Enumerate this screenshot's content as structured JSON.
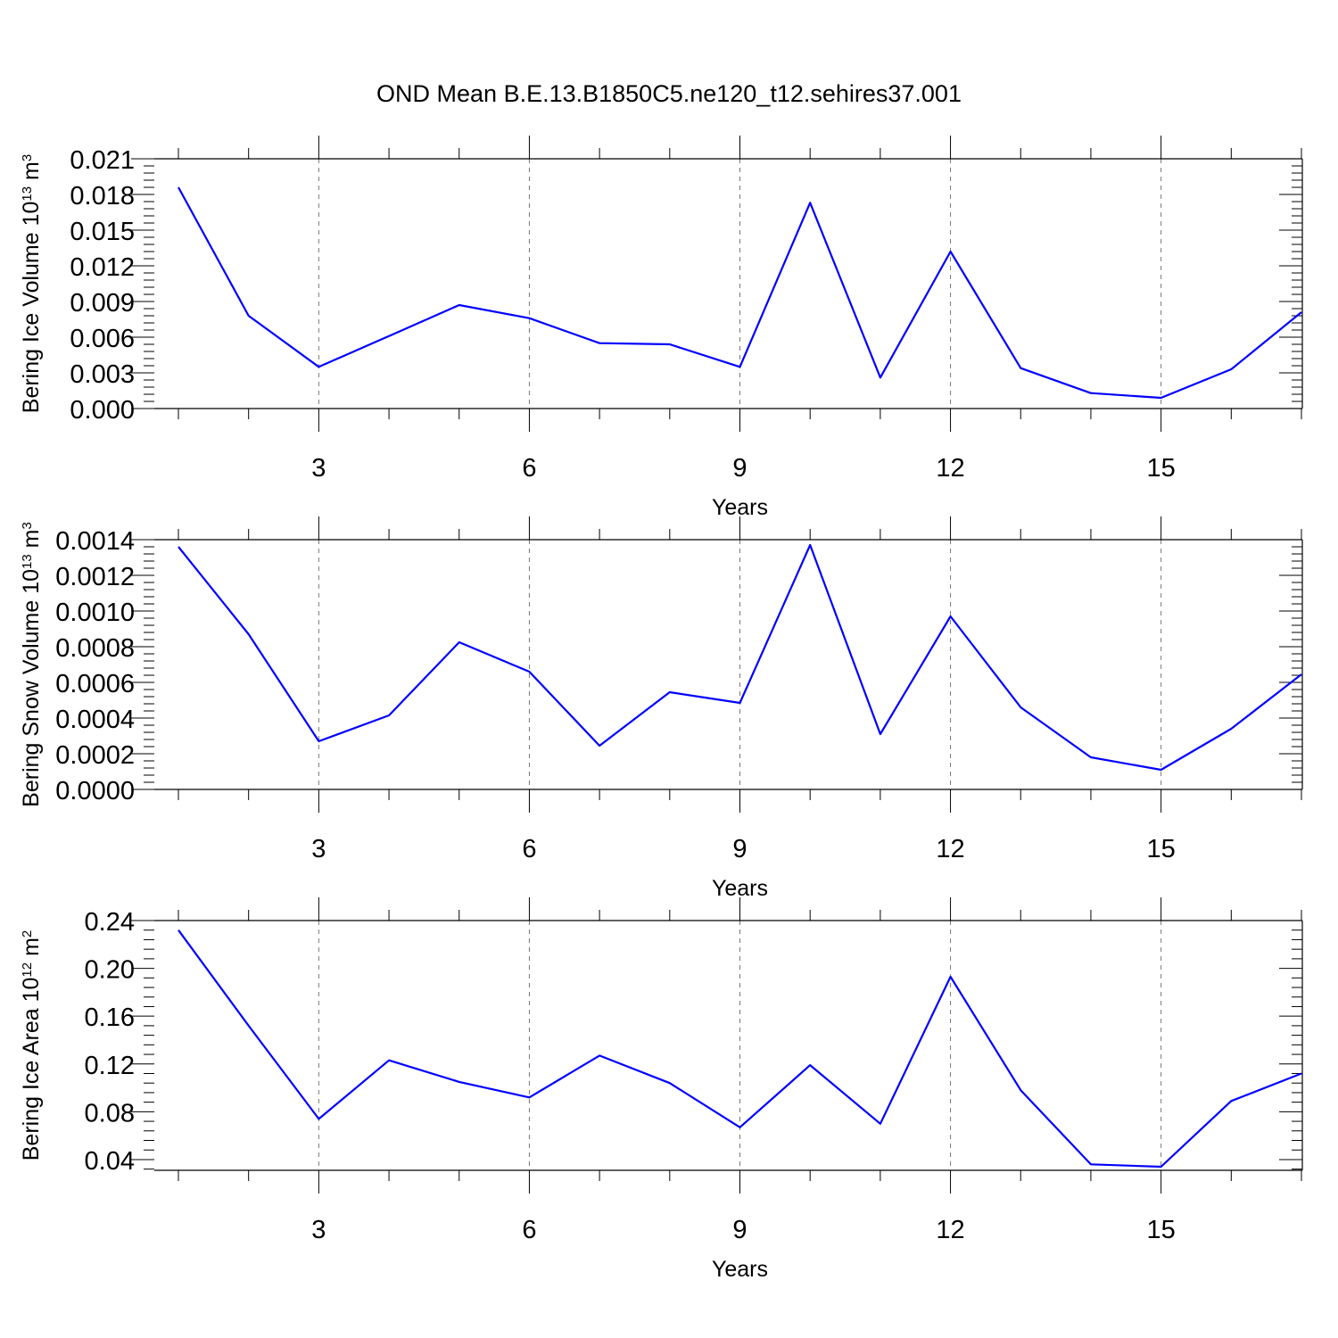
{
  "title": "OND Mean B.E.13.B1850C5.ne120_t12.sehires37.001",
  "colors": {
    "line": "#0000ff",
    "axis": "#000000",
    "grid": "#777777"
  },
  "chart_data": [
    {
      "type": "line",
      "ylabel": "Bering Ice Volume 10",
      "ylabel_exp": "13",
      "ylabel_unit": " m",
      "ylabel_unit_exp": "3",
      "xlabel": "Years",
      "xlim": [
        1,
        17
      ],
      "ylim": [
        0,
        0.021
      ],
      "x_ticks": [
        3,
        6,
        9,
        12,
        15
      ],
      "x_tick_labels": [
        "3",
        "6",
        "9",
        "12",
        "15"
      ],
      "y_ticks": [
        0,
        0.003,
        0.006,
        0.009,
        0.012,
        0.015,
        0.018,
        0.021
      ],
      "y_tick_labels": [
        "0.000",
        "0.003",
        "0.006",
        "0.009",
        "0.012",
        "0.015",
        "0.018",
        "0.021"
      ],
      "grid": "vertical dashed at major x ticks",
      "x": [
        1,
        2,
        3,
        4,
        5,
        6,
        7,
        8,
        9,
        10,
        11,
        12,
        13,
        14,
        15,
        16,
        17
      ],
      "values": [
        0.0186,
        0.0078,
        0.0035,
        0.0061,
        0.0087,
        0.0076,
        0.0055,
        0.0054,
        0.0035,
        0.0173,
        0.0026,
        0.0132,
        0.0034,
        0.0013,
        0.0009,
        0.0033,
        0.0081
      ]
    },
    {
      "type": "line",
      "ylabel": "Bering Snow Volume 10",
      "ylabel_exp": "13",
      "ylabel_unit": " m",
      "ylabel_unit_exp": "3",
      "xlabel": "Years",
      "xlim": [
        1,
        17
      ],
      "ylim": [
        0,
        0.0014
      ],
      "x_ticks": [
        3,
        6,
        9,
        12,
        15
      ],
      "x_tick_labels": [
        "3",
        "6",
        "9",
        "12",
        "15"
      ],
      "y_ticks": [
        0,
        0.0002,
        0.0004,
        0.0006,
        0.0008,
        0.001,
        0.0012,
        0.0014
      ],
      "y_tick_labels": [
        "0.0000",
        "0.0002",
        "0.0004",
        "0.0006",
        "0.0008",
        "0.0010",
        "0.0012",
        "0.0014"
      ],
      "grid": "vertical dashed at major x ticks",
      "x": [
        1,
        2,
        3,
        4,
        5,
        6,
        7,
        8,
        9,
        10,
        11,
        12,
        13,
        14,
        15,
        16,
        17
      ],
      "values": [
        0.00136,
        0.00087,
        0.00027,
        0.000415,
        0.000825,
        0.00066,
        0.000245,
        0.000545,
        0.000485,
        0.00137,
        0.00031,
        0.00097,
        0.00046,
        0.00018,
        0.00011,
        0.00034,
        0.000645
      ]
    },
    {
      "type": "line",
      "ylabel": "Bering Ice Area 10",
      "ylabel_exp": "12",
      "ylabel_unit": " m",
      "ylabel_unit_exp": "2",
      "xlabel": "Years",
      "xlim": [
        1,
        17
      ],
      "ylim": [
        0.031,
        0.24
      ],
      "x_ticks": [
        3,
        6,
        9,
        12,
        15
      ],
      "x_tick_labels": [
        "3",
        "6",
        "9",
        "12",
        "15"
      ],
      "y_ticks": [
        0.04,
        0.08,
        0.12,
        0.16,
        0.2,
        0.24
      ],
      "y_tick_labels": [
        "0.04",
        "0.08",
        "0.12",
        "0.16",
        "0.20",
        "0.24"
      ],
      "grid": "vertical dashed at major x ticks",
      "x": [
        1,
        2,
        3,
        4,
        5,
        6,
        7,
        8,
        9,
        10,
        11,
        12,
        13,
        14,
        15,
        16,
        17
      ],
      "values": [
        0.232,
        0.152,
        0.074,
        0.123,
        0.105,
        0.092,
        0.127,
        0.104,
        0.067,
        0.119,
        0.07,
        0.193,
        0.098,
        0.036,
        0.034,
        0.089,
        0.112
      ]
    }
  ]
}
